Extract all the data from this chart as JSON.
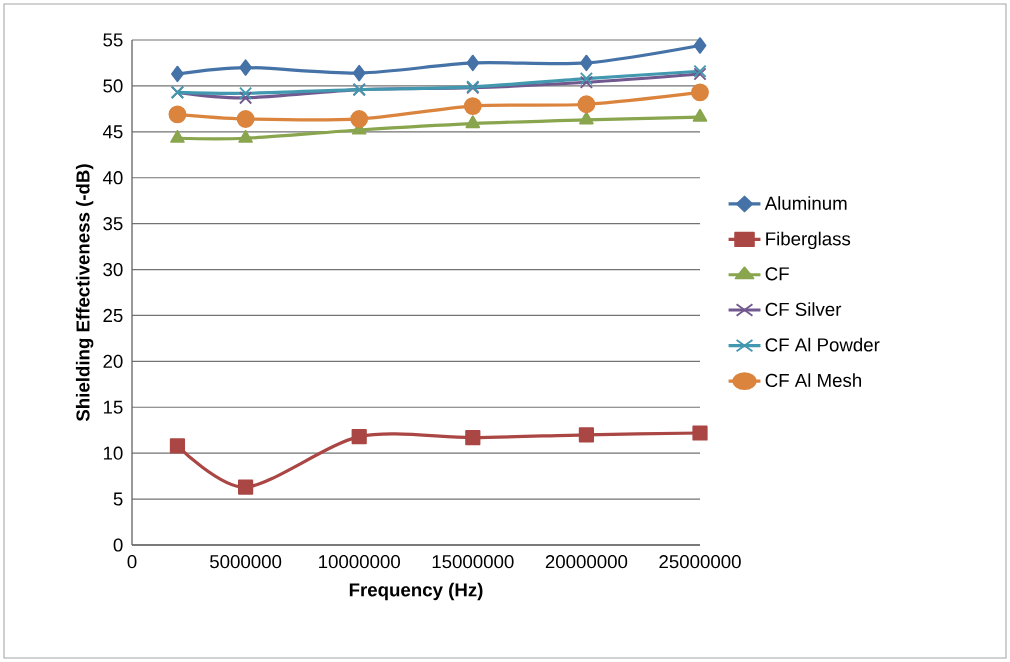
{
  "chart_data": {
    "type": "line",
    "xlabel": "Frequency (Hz)",
    "ylabel": "Shielding Effectiveness (-dB)",
    "x": [
      2000000,
      5000000,
      10000000,
      15000000,
      20000000,
      25000000
    ],
    "series": [
      {
        "name": "Aluminum",
        "color": "#4572a7",
        "marker": "diamond",
        "values": [
          51.3,
          52.0,
          51.4,
          52.5,
          52.5,
          54.4
        ]
      },
      {
        "name": "Fiberglass",
        "color": "#aa4643",
        "marker": "square",
        "values": [
          10.8,
          6.3,
          11.8,
          11.7,
          12.0,
          12.2
        ]
      },
      {
        "name": "CF",
        "color": "#89a54e",
        "marker": "triangle",
        "values": [
          44.3,
          44.3,
          45.2,
          45.9,
          46.3,
          46.6
        ]
      },
      {
        "name": "CF Silver",
        "color": "#71588f",
        "marker": "cross",
        "values": [
          49.3,
          48.7,
          49.6,
          49.8,
          50.4,
          51.3
        ]
      },
      {
        "name": "CF Al Powder",
        "color": "#4198af",
        "marker": "cross",
        "values": [
          49.3,
          49.2,
          49.6,
          49.9,
          50.8,
          51.6
        ]
      },
      {
        "name": "CF Al Mesh",
        "color": "#db843d",
        "marker": "circle",
        "values": [
          46.9,
          46.4,
          46.4,
          47.8,
          48.0,
          49.3
        ]
      }
    ],
    "xlim": [
      0,
      25000000
    ],
    "xticks": [
      0,
      5000000,
      10000000,
      15000000,
      20000000,
      25000000
    ],
    "ylim": [
      0,
      55
    ],
    "yticks": [
      0,
      5,
      10,
      15,
      20,
      25,
      30,
      35,
      40,
      45,
      50,
      55
    ],
    "grid": "y",
    "legend": "right"
  }
}
